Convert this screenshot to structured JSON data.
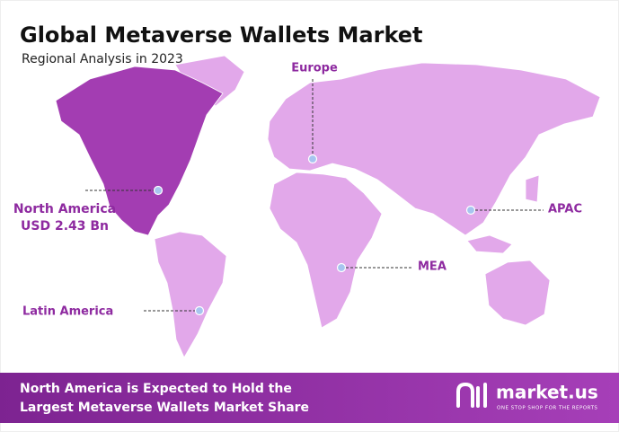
{
  "header": {
    "title": "Global Metaverse Wallets Market",
    "subtitle": "Regional Analysis in 2023"
  },
  "regions": [
    {
      "name": "Europe"
    },
    {
      "name": "North America",
      "value": "USD 2.43 Bn"
    },
    {
      "name": "APAC"
    },
    {
      "name": "MEA"
    },
    {
      "name": "Latin America"
    }
  ],
  "footer": {
    "lines": [
      "North America is Expected to Hold the",
      "Largest Metaverse Wallets Market Share"
    ],
    "brand": "market.us",
    "tagline": "ONE STOP SHOP FOR THE REPORTS"
  }
}
